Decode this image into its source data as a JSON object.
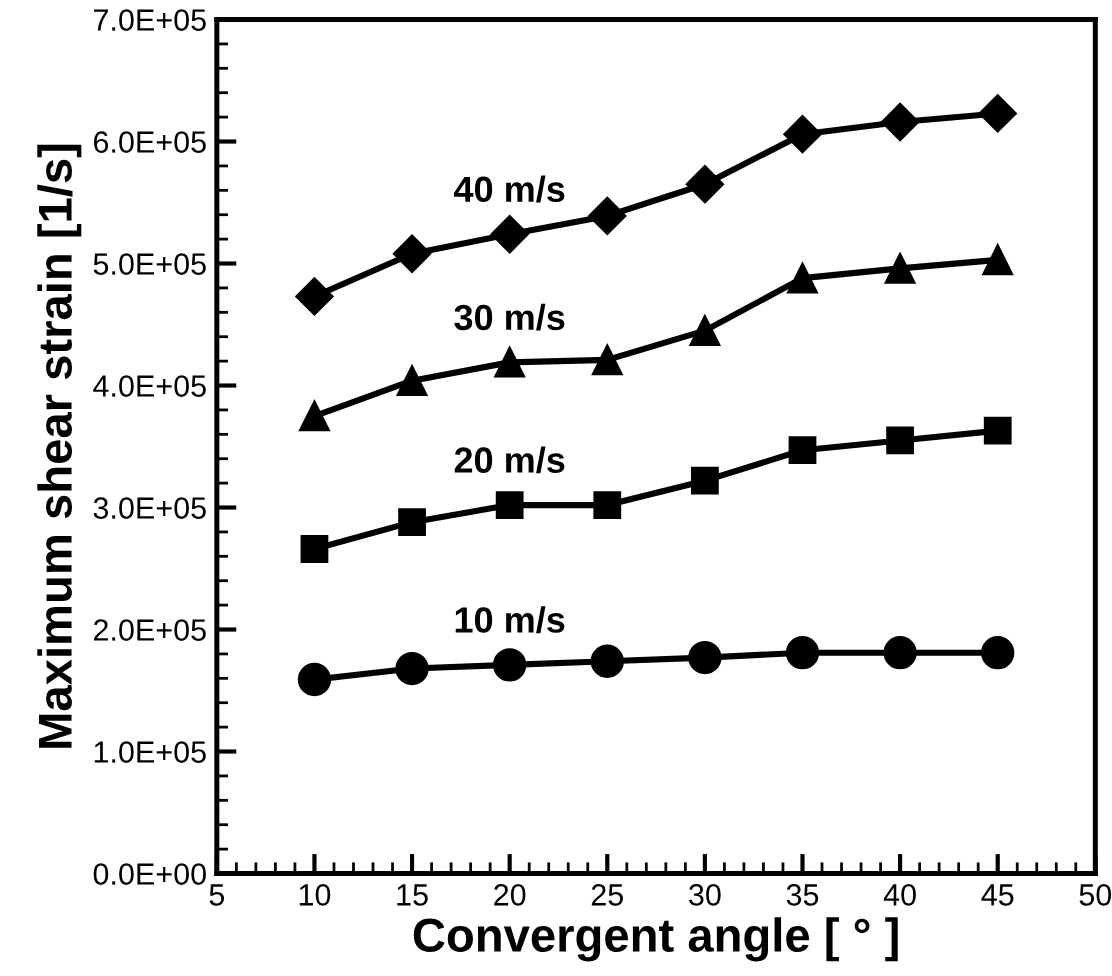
{
  "chart_data": {
    "type": "line",
    "xlabel": "Convergent angle [ ° ]",
    "ylabel": "Maximum shear strain [1/s]",
    "x": [
      10,
      15,
      20,
      25,
      30,
      35,
      40,
      45
    ],
    "series": [
      {
        "name": "10 m/s",
        "color": "#000000",
        "marker": "circle",
        "values": [
          159000,
          168000,
          171000,
          174000,
          177000,
          181000,
          181000,
          181000
        ]
      },
      {
        "name": "20 m/s",
        "color": "#000000",
        "marker": "square",
        "values": [
          266000,
          288000,
          302000,
          302000,
          322000,
          347000,
          355000,
          363000
        ]
      },
      {
        "name": "30 m/s",
        "color": "#000000",
        "marker": "triangle",
        "values": [
          375000,
          404000,
          419000,
          421000,
          445000,
          488000,
          496000,
          503000
        ]
      },
      {
        "name": "40 m/s",
        "color": "#000000",
        "marker": "diamond",
        "values": [
          473000,
          508000,
          524000,
          539000,
          565000,
          606000,
          616000,
          623000
        ]
      }
    ],
    "xlim": [
      5,
      50
    ],
    "xticks": [
      5,
      10,
      15,
      20,
      25,
      30,
      35,
      40,
      45,
      50
    ],
    "ylim": [
      0,
      700000
    ],
    "yticks": [
      {
        "value": 0,
        "label": "0.0E+00"
      },
      {
        "value": 100000,
        "label": "1.0E+05"
      },
      {
        "value": 200000,
        "label": "2.0E+05"
      },
      {
        "value": 300000,
        "label": "3.0E+05"
      },
      {
        "value": 400000,
        "label": "4.0E+05"
      },
      {
        "value": 500000,
        "label": "5.0E+05"
      },
      {
        "value": 600000,
        "label": "6.0E+05"
      },
      {
        "value": 700000,
        "label": "7.0E+05"
      }
    ],
    "grid": false,
    "legend": false,
    "line_style": "solid"
  }
}
